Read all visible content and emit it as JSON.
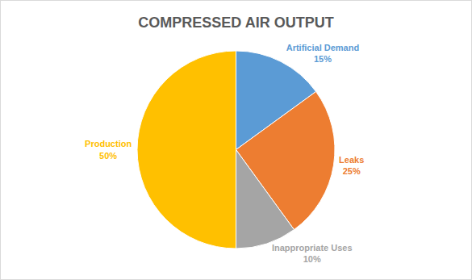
{
  "chart_data": {
    "type": "pie",
    "title": "COMPRESSED AIR OUTPUT",
    "categories": [
      "Artificial Demand",
      "Leaks",
      "Inappropriate Uses",
      "Production"
    ],
    "values": [
      15,
      25,
      10,
      50
    ],
    "value_labels": [
      "15%",
      "25%",
      "10%",
      "50%"
    ],
    "colors": [
      "#5b9bd5",
      "#ed7d31",
      "#a5a5a5",
      "#ffc000"
    ],
    "data_labels": true
  }
}
